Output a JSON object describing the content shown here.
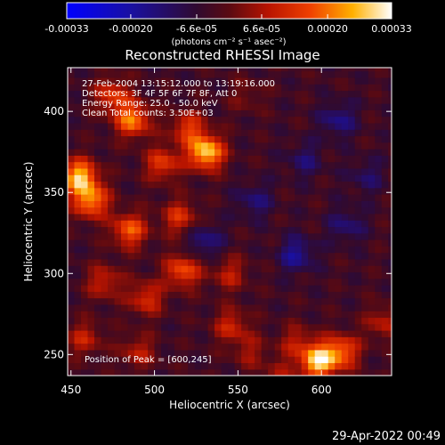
{
  "chart_data": {
    "type": "heatmap",
    "title": "Reconstructed RHESSI Image",
    "xlabel": "Heliocentric X (arcsec)",
    "ylabel": "Heliocentric Y (arcsec)",
    "xlim": [
      448,
      642
    ],
    "ylim": [
      237,
      427
    ],
    "x_ticks": [
      450,
      500,
      550,
      600
    ],
    "y_ticks": [
      250,
      300,
      350,
      400
    ],
    "colorbar": {
      "min": -0.00033,
      "max": 0.00033,
      "ticks": [
        -0.00033,
        -0.0002,
        -6.6e-05,
        6.6e-05,
        0.0002,
        0.00033
      ],
      "tick_labels": [
        "-0.00033",
        "-0.00020",
        "-6.6e-05",
        "6.6e-05",
        "0.00020",
        "0.00033"
      ],
      "units_label": "(photons cm⁻² s⁻¹ asec⁻²)"
    },
    "annotations": [
      "27-Feb-2004 13:15:12.000 to 13:19:16.000",
      "Detectors: 3F 4F 5F 6F 7F 8F, Att 0",
      "Energy Range: 25.0 - 50.0 keV",
      "Clean    Total counts: 3.50E+03"
    ],
    "peak_label": "Position of Peak = [600,245]",
    "peak": [
      600,
      245
    ],
    "sources": [
      {
        "x": 455,
        "y": 360,
        "value": 0.00031
      },
      {
        "x": 462,
        "y": 345,
        "value": 0.00026
      },
      {
        "x": 487,
        "y": 395,
        "value": 0.00025
      },
      {
        "x": 475,
        "y": 410,
        "value": 0.00018
      },
      {
        "x": 485,
        "y": 327,
        "value": 0.00022
      },
      {
        "x": 505,
        "y": 368,
        "value": 0.00018
      },
      {
        "x": 531,
        "y": 375,
        "value": 0.00033
      },
      {
        "x": 520,
        "y": 390,
        "value": 0.00017
      },
      {
        "x": 515,
        "y": 335,
        "value": 0.00016
      },
      {
        "x": 517,
        "y": 302,
        "value": 0.00021
      },
      {
        "x": 495,
        "y": 285,
        "value": 0.00016
      },
      {
        "x": 470,
        "y": 295,
        "value": 0.00014
      },
      {
        "x": 458,
        "y": 260,
        "value": 0.00013
      },
      {
        "x": 490,
        "y": 252,
        "value": 0.00012
      },
      {
        "x": 545,
        "y": 300,
        "value": 0.00012
      },
      {
        "x": 546,
        "y": 268,
        "value": 0.00014
      },
      {
        "x": 557,
        "y": 252,
        "value": 9e-05
      },
      {
        "x": 598,
        "y": 246,
        "value": 0.00033
      },
      {
        "x": 612,
        "y": 252,
        "value": 0.00022
      },
      {
        "x": 585,
        "y": 258,
        "value": 0.00011
      },
      {
        "x": 575,
        "y": 238,
        "value": 8e-05
      },
      {
        "x": 637,
        "y": 270,
        "value": 0.00012
      },
      {
        "x": 555,
        "y": 410,
        "value": 6e-05
      },
      {
        "x": 610,
        "y": 395,
        "value": -0.00012
      },
      {
        "x": 560,
        "y": 345,
        "value": -0.0001
      },
      {
        "x": 585,
        "y": 312,
        "value": -0.00014
      },
      {
        "x": 615,
        "y": 330,
        "value": -0.0001
      },
      {
        "x": 530,
        "y": 320,
        "value": -0.00012
      },
      {
        "x": 590,
        "y": 370,
        "value": -9e-05
      },
      {
        "x": 627,
        "y": 360,
        "value": -8e-05
      }
    ]
  },
  "footer": {
    "timestamp": "29-Apr-2022 00:49"
  }
}
